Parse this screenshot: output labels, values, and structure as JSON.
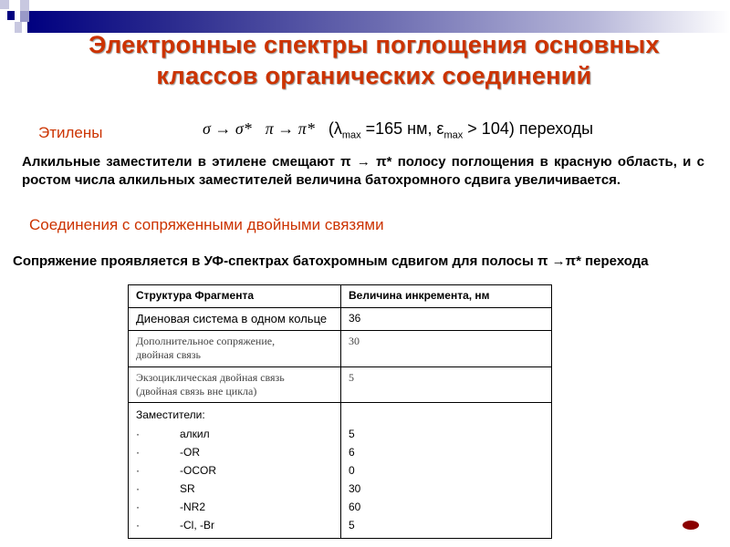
{
  "title": "Электронные спектры поглощения основных классов органических соединений",
  "section1": {
    "heading": "Этилены",
    "formula_a": "σ → σ*",
    "formula_b": "π → π*",
    "formula_c1": "(λ",
    "formula_c_sub1": "max",
    "formula_c2": " =165 нм, ε",
    "formula_c_sub2": "max",
    "formula_c3": " > 104) переходы",
    "paragraph": "Алкильные заместители в этилене смещают π → π* полосу поглощения в красную область, и с ростом числа алкильных заместителей величина батохромного сдвига увеличивается."
  },
  "section2": {
    "heading": "Соединения с сопряженными двойными связями",
    "paragraph": "Сопряжение проявляется в УФ-спектрах батохромным сдвигом для полосы π →π* перехода"
  },
  "table": {
    "headers": [
      "Структура  Фрагмента",
      "Величина инкремента, нм"
    ],
    "rows": [
      [
        "Диеновая система в одном кольце",
        "36"
      ],
      [
        "Дополнительное сопряжение,\nдвойная связь",
        "30"
      ],
      [
        "Экзоциклическая двойная связь\n(двойная связь вне цикла)",
        "5"
      ]
    ],
    "substituents_label": "Заместители:",
    "bullet": "·",
    "substituents": [
      {
        "name": "алкил",
        "value": "5"
      },
      {
        "name": "-OR",
        "value": "6"
      },
      {
        "name": "-OCOR",
        "value": "0"
      },
      {
        "name": "SR",
        "value": "30"
      },
      {
        "name": "-NR2",
        "value": "60"
      },
      {
        "name": "-Cl, -Br",
        "value": "5"
      }
    ]
  },
  "colors": {
    "accent": "#cc3300",
    "bar": "#000080",
    "oval": "#8b0000"
  }
}
